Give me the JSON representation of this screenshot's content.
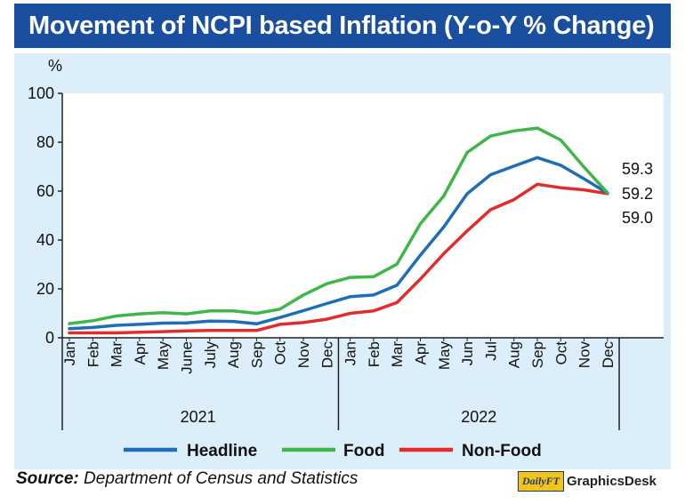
{
  "title": "Movement of NCPI based Inflation (Y-o-Y % Change)",
  "source": {
    "label": "Source:",
    "text": "Department of Census and Statistics"
  },
  "credit": {
    "mark": "DailyFT",
    "text": "GraphicsDesk"
  },
  "colors": {
    "title_bg": "#1a4fa0",
    "panel_bg": "#dbeef9",
    "headline": "#1f6db5",
    "food": "#3fb54a",
    "nonfood": "#e22b2b"
  },
  "chart_data": {
    "type": "line",
    "ylabel": "%",
    "ylim": [
      0,
      100
    ],
    "yticks": [
      0,
      20,
      40,
      60,
      80,
      100
    ],
    "categories": [
      "Jan",
      "Feb",
      "Mar",
      "Apr",
      "May",
      "June",
      "July",
      "Aug",
      "Sep",
      "Oct",
      "Nov",
      "Dec",
      "Jan",
      "Feb",
      "Mar",
      "Apr",
      "May",
      "Jun",
      "Jul",
      "Aug",
      "Sep",
      "Oct",
      "Nov",
      "Dec"
    ],
    "years": [
      {
        "label": "2021",
        "start": 0,
        "end": 11
      },
      {
        "label": "2022",
        "start": 12,
        "end": 23
      }
    ],
    "series": [
      {
        "name": "Headline",
        "color": "#1f6db5",
        "values": [
          3.7,
          4.2,
          5.1,
          5.5,
          6.0,
          6.1,
          6.8,
          6.7,
          5.7,
          8.3,
          11.1,
          14.0,
          16.8,
          17.5,
          21.5,
          33.8,
          45.3,
          58.9,
          66.7,
          70.2,
          73.7,
          70.6,
          65.0,
          59.2
        ]
      },
      {
        "name": "Food",
        "color": "#3fb54a",
        "values": [
          5.8,
          7.0,
          8.9,
          9.8,
          10.3,
          9.8,
          11.0,
          11.0,
          10.0,
          11.7,
          17.5,
          22.1,
          24.7,
          25.0,
          30.1,
          46.6,
          58.0,
          75.8,
          82.5,
          84.6,
          85.8,
          80.9,
          69.8,
          59.3
        ]
      },
      {
        "name": "Non-Food",
        "color": "#e22b2b",
        "values": [
          2.0,
          2.0,
          2.0,
          2.3,
          2.5,
          2.8,
          3.0,
          3.0,
          3.0,
          5.5,
          6.2,
          7.6,
          10.0,
          11.0,
          14.4,
          24.0,
          34.4,
          43.7,
          52.4,
          56.5,
          62.8,
          61.4,
          60.5,
          59.0
        ]
      }
    ],
    "end_labels": [
      {
        "series": "Food",
        "text": "59.3"
      },
      {
        "series": "Headline",
        "text": "59.2"
      },
      {
        "series": "Non-Food",
        "text": "59.0"
      }
    ],
    "legend_position": "bottom",
    "grid": false
  }
}
